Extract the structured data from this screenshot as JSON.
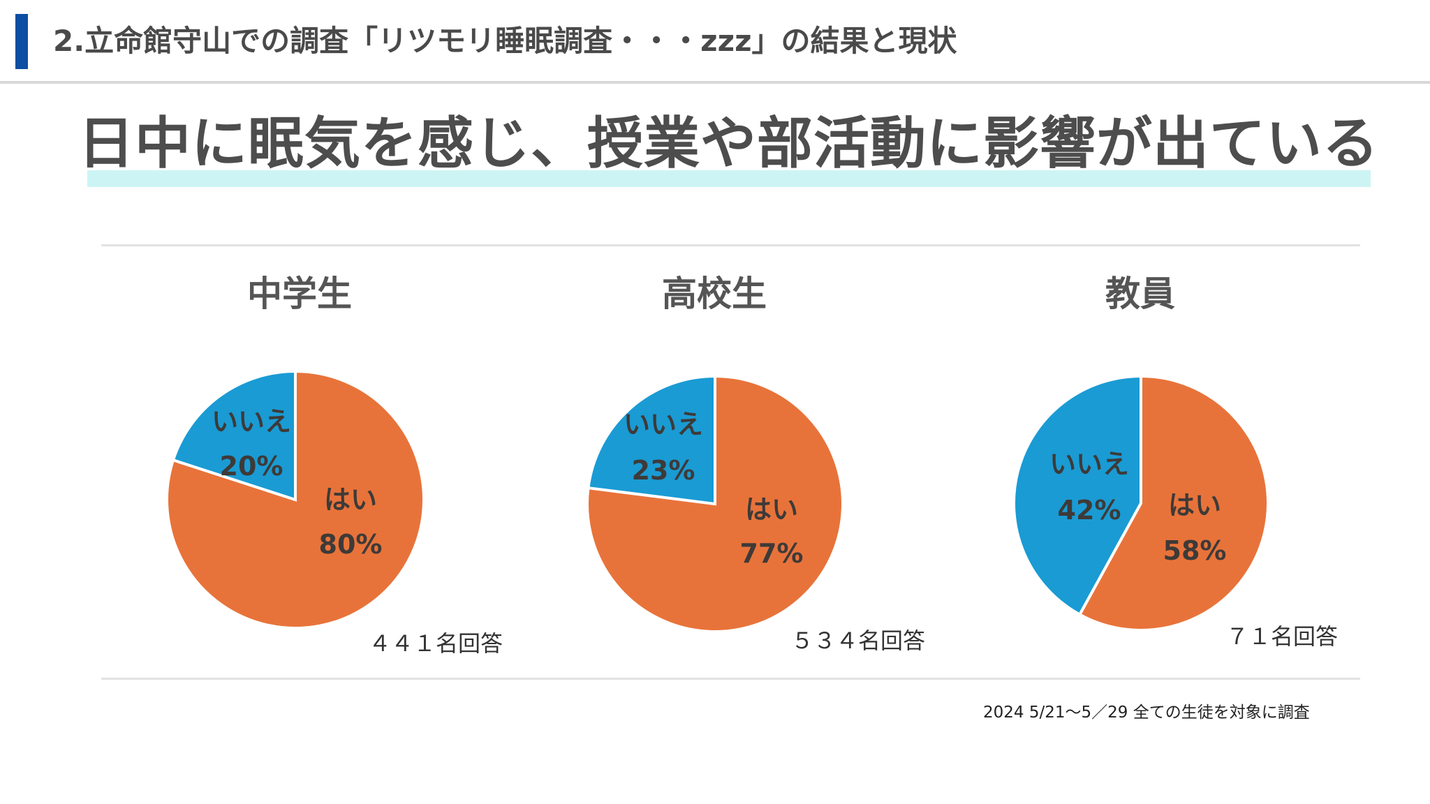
{
  "header": {
    "title": "2.立命館守山での調査「リツモリ睡眠調査・・・zzz」の結果と現状",
    "accent_color": "#0b4ea2"
  },
  "main_title": "日中に眠気を感じ、授業や部活動に影響が出ている",
  "footnote": "2024 5/21〜5／29 全ての生徒を対象に調査",
  "colors": {
    "yes": "#e8733a",
    "no": "#1a9bd4",
    "highlight": "#cdf4f4"
  },
  "chart_data": [
    {
      "type": "pie",
      "title": "中学生",
      "respondents": "４４１名回答",
      "slices": [
        {
          "label": "はい",
          "value": 80,
          "display": "80%"
        },
        {
          "label": "いいえ",
          "value": 20,
          "display": "20%"
        }
      ]
    },
    {
      "type": "pie",
      "title": "高校生",
      "respondents": "５３４名回答",
      "slices": [
        {
          "label": "はい",
          "value": 77,
          "display": "77%"
        },
        {
          "label": "いいえ",
          "value": 23,
          "display": "23%"
        }
      ]
    },
    {
      "type": "pie",
      "title": "教員",
      "respondents": "７１名回答",
      "slices": [
        {
          "label": "はい",
          "value": 58,
          "display": "58%"
        },
        {
          "label": "いいえ",
          "value": 42,
          "display": "42%"
        }
      ]
    }
  ]
}
